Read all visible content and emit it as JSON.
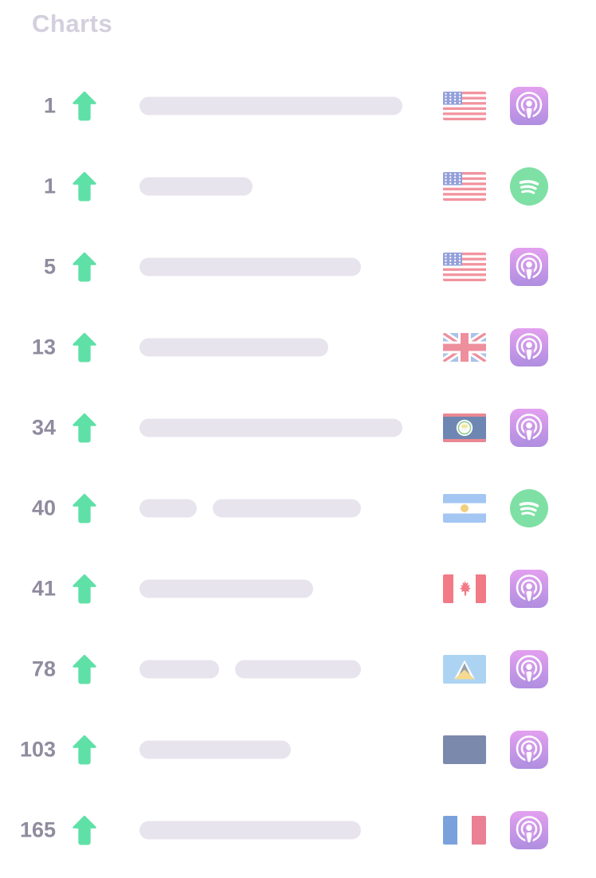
{
  "title": "Charts",
  "colors": {
    "title": "#D3CFDD",
    "rank": "#908B9E",
    "arrow_green": "#5FE0A6",
    "bar_gray": "#E8E4EE",
    "apple_gradient_top": "#E3A0EF",
    "apple_gradient_bottom": "#AF8EE0",
    "spotify_green": "#7EE0A4"
  },
  "list": {
    "rows": [
      {
        "rank": "1",
        "direction": "up",
        "country": "United States",
        "country_code": "us",
        "platform": "Apple Podcasts",
        "platform_code": "apple",
        "bar_widths": [
          330
        ]
      },
      {
        "rank": "1",
        "direction": "up",
        "country": "United States",
        "country_code": "us",
        "platform": "Spotify",
        "platform_code": "spotify",
        "bar_widths": [
          142
        ]
      },
      {
        "rank": "5",
        "direction": "up",
        "country": "United States",
        "country_code": "us",
        "platform": "Apple Podcasts",
        "platform_code": "apple",
        "bar_widths": [
          278
        ]
      },
      {
        "rank": "13",
        "direction": "up",
        "country": "United Kingdom",
        "country_code": "gb",
        "platform": "Apple Podcasts",
        "platform_code": "apple",
        "bar_widths": [
          237
        ]
      },
      {
        "rank": "34",
        "direction": "up",
        "country": "Belize",
        "country_code": "bz",
        "platform": "Apple Podcasts",
        "platform_code": "apple",
        "bar_widths": [
          330
        ]
      },
      {
        "rank": "40",
        "direction": "up",
        "country": "Argentina",
        "country_code": "ar",
        "platform": "Spotify",
        "platform_code": "spotify",
        "bar_widths": [
          72,
          186
        ]
      },
      {
        "rank": "41",
        "direction": "up",
        "country": "Canada",
        "country_code": "ca",
        "platform": "Apple Podcasts",
        "platform_code": "apple",
        "bar_widths": [
          218
        ]
      },
      {
        "rank": "78",
        "direction": "up",
        "country": "Saint Lucia",
        "country_code": "lc",
        "platform": "Apple Podcasts",
        "platform_code": "apple",
        "bar_widths": [
          100,
          158
        ]
      },
      {
        "rank": "103",
        "direction": "up",
        "country": "Unknown",
        "country_code": "unknown",
        "platform": "Apple Podcasts",
        "platform_code": "apple",
        "bar_widths": [
          190
        ]
      },
      {
        "rank": "165",
        "direction": "up",
        "country": "France",
        "country_code": "fr",
        "platform": "Apple Podcasts",
        "platform_code": "apple",
        "bar_widths": [
          278
        ]
      }
    ]
  }
}
